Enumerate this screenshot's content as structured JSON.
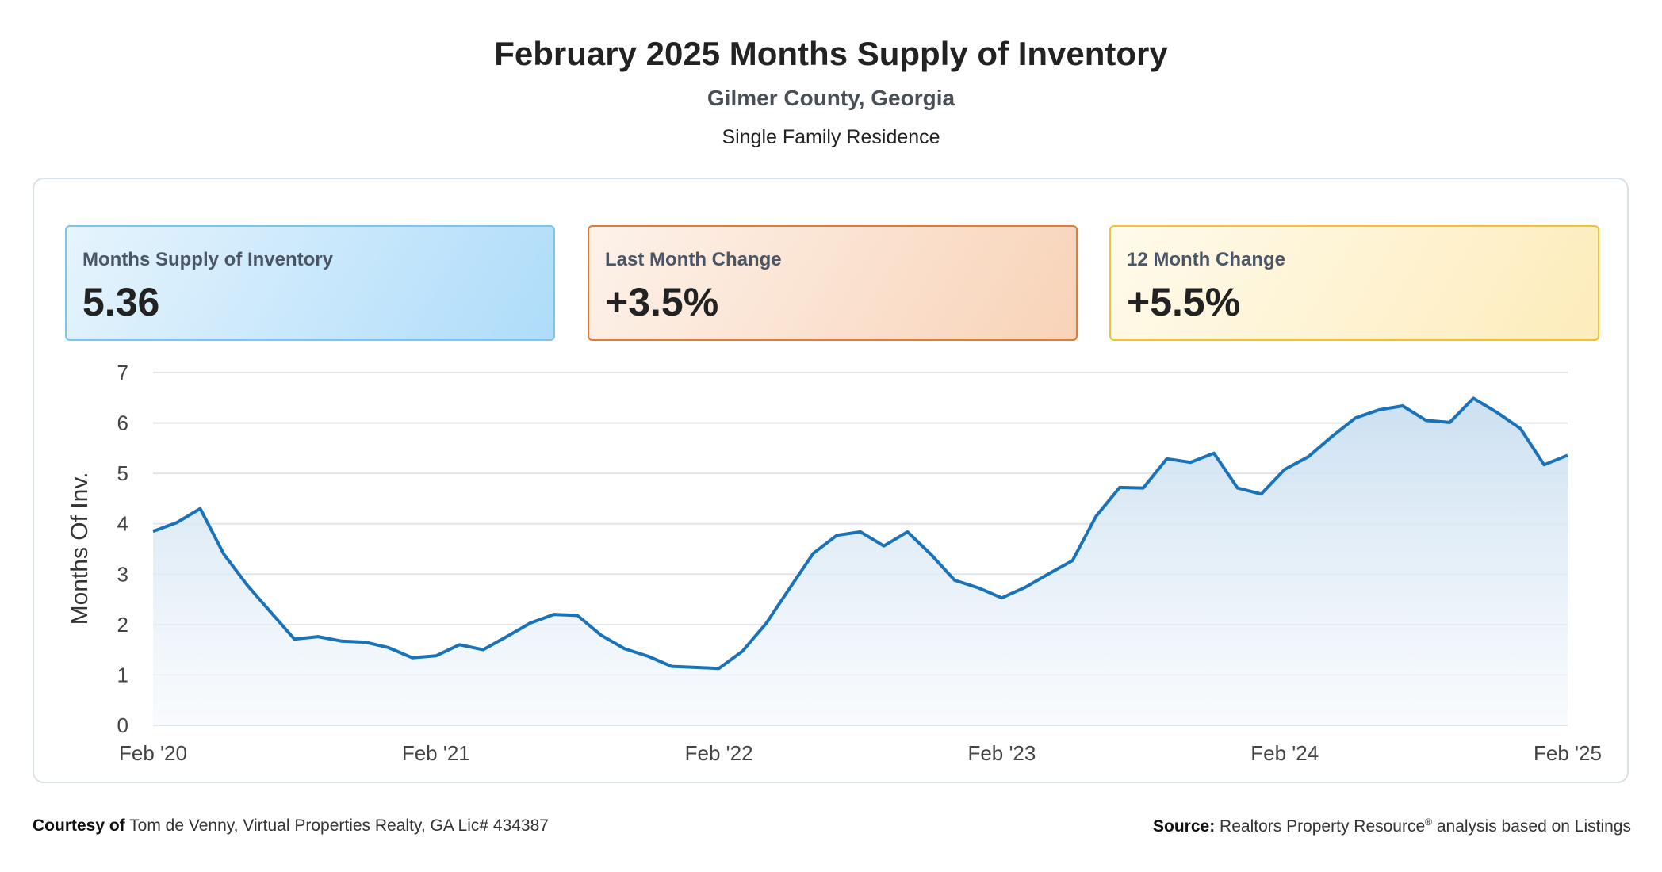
{
  "header": {
    "title": "February 2025 Months Supply of Inventory",
    "subtitle": "Gilmer County, Georgia",
    "property_type": "Single Family Residence"
  },
  "cards": [
    {
      "label": "Months Supply of Inventory",
      "value": "5.36",
      "color": "#7cc3ee"
    },
    {
      "label": "Last Month Change",
      "value": "+3.5%",
      "color": "#e07b3c"
    },
    {
      "label": "12 Month Change",
      "value": "+5.5%",
      "color": "#f3c232"
    }
  ],
  "footer": {
    "courtesy_label": "Courtesy of",
    "courtesy_text": "Tom de Venny, Virtual Properties Realty, GA Lic# 434387",
    "source_label": "Source:",
    "source_text_a": "Realtors Property Resource",
    "source_sup": "®",
    "source_text_b": " analysis based on Listings"
  },
  "chart_data": {
    "type": "area",
    "ylabel": "Months Of Inv.",
    "xlabel": "",
    "ylim": [
      0,
      7
    ],
    "yticks": [
      "0",
      "1",
      "2",
      "3",
      "4",
      "5",
      "6",
      "7"
    ],
    "xtick_labels": [
      "Feb '20",
      "Feb '21",
      "Feb '22",
      "Feb '23",
      "Feb '24",
      "Feb '25"
    ],
    "grid": true,
    "line_color": "#1a72b8",
    "series": [
      {
        "values": [
          3.85,
          4.02,
          4.3,
          3.4,
          2.78,
          2.24,
          1.71,
          1.76,
          1.67,
          1.65,
          1.54,
          1.34,
          1.38,
          1.6,
          1.5,
          1.76,
          2.03,
          2.2,
          2.18,
          1.79,
          1.52,
          1.37,
          1.17,
          1.15,
          1.13,
          1.47,
          2.02,
          2.72,
          3.41,
          3.77,
          3.84,
          3.56,
          3.84,
          3.39,
          2.88,
          2.73,
          2.53,
          2.74,
          3.01,
          3.27,
          4.15,
          4.72,
          4.71,
          5.29,
          5.22,
          5.4,
          4.71,
          4.59,
          5.08,
          5.33,
          5.73,
          6.1,
          6.26,
          6.34,
          6.05,
          6.01,
          6.49,
          6.21,
          5.89,
          5.17,
          5.36
        ]
      }
    ]
  }
}
